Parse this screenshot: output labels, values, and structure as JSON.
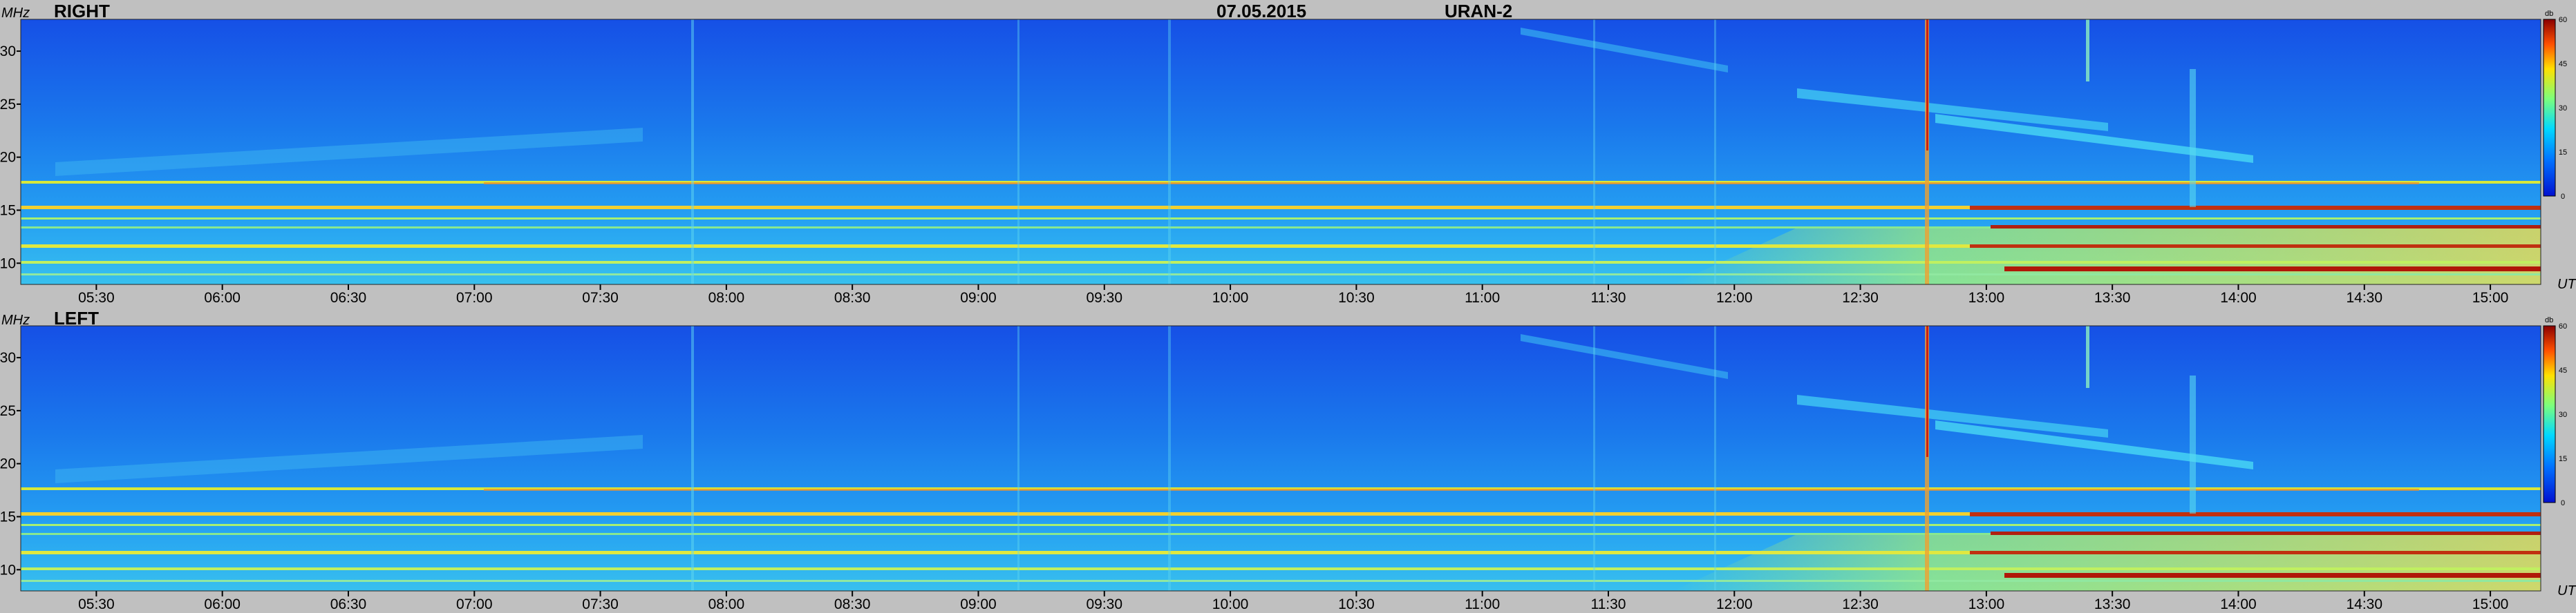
{
  "header": {
    "date": "07.05.2015",
    "instrument": "URAN-2"
  },
  "chart_data": [
    {
      "type": "heatmap",
      "title": "RIGHT",
      "y_unit": "MHz",
      "x_unit": "UT",
      "y_range": [
        8,
        33
      ],
      "x_range": [
        "05:12",
        "15:12"
      ],
      "y_ticks": [
        "30",
        "25",
        "20",
        "15",
        "10"
      ],
      "x_ticks": [
        "05:30",
        "06:00",
        "06:30",
        "07:00",
        "07:30",
        "08:00",
        "08:30",
        "09:00",
        "09:30",
        "10:00",
        "10:30",
        "11:00",
        "11:30",
        "12:00",
        "12:30",
        "13:00",
        "13:30",
        "14:00",
        "14:30",
        "15:00"
      ],
      "colorbar": {
        "unit": "db",
        "range": [
          0,
          60
        ],
        "ticks": [
          "60",
          "45",
          "30",
          "15",
          "0"
        ]
      }
    },
    {
      "type": "heatmap",
      "title": "LEFT",
      "y_unit": "MHz",
      "x_unit": "UT",
      "y_range": [
        8,
        33
      ],
      "x_range": [
        "05:12",
        "15:12"
      ],
      "y_ticks": [
        "30",
        "25",
        "20",
        "15",
        "10"
      ],
      "x_ticks": [
        "05:30",
        "06:00",
        "06:30",
        "07:00",
        "07:30",
        "08:00",
        "08:30",
        "09:00",
        "09:30",
        "10:00",
        "10:30",
        "11:00",
        "11:30",
        "12:00",
        "12:30",
        "13:00",
        "13:30",
        "14:00",
        "14:30",
        "15:00"
      ],
      "colorbar": {
        "unit": "db",
        "range": [
          0,
          60
        ],
        "ticks": [
          "60",
          "45",
          "30",
          "15",
          "0"
        ]
      }
    }
  ]
}
